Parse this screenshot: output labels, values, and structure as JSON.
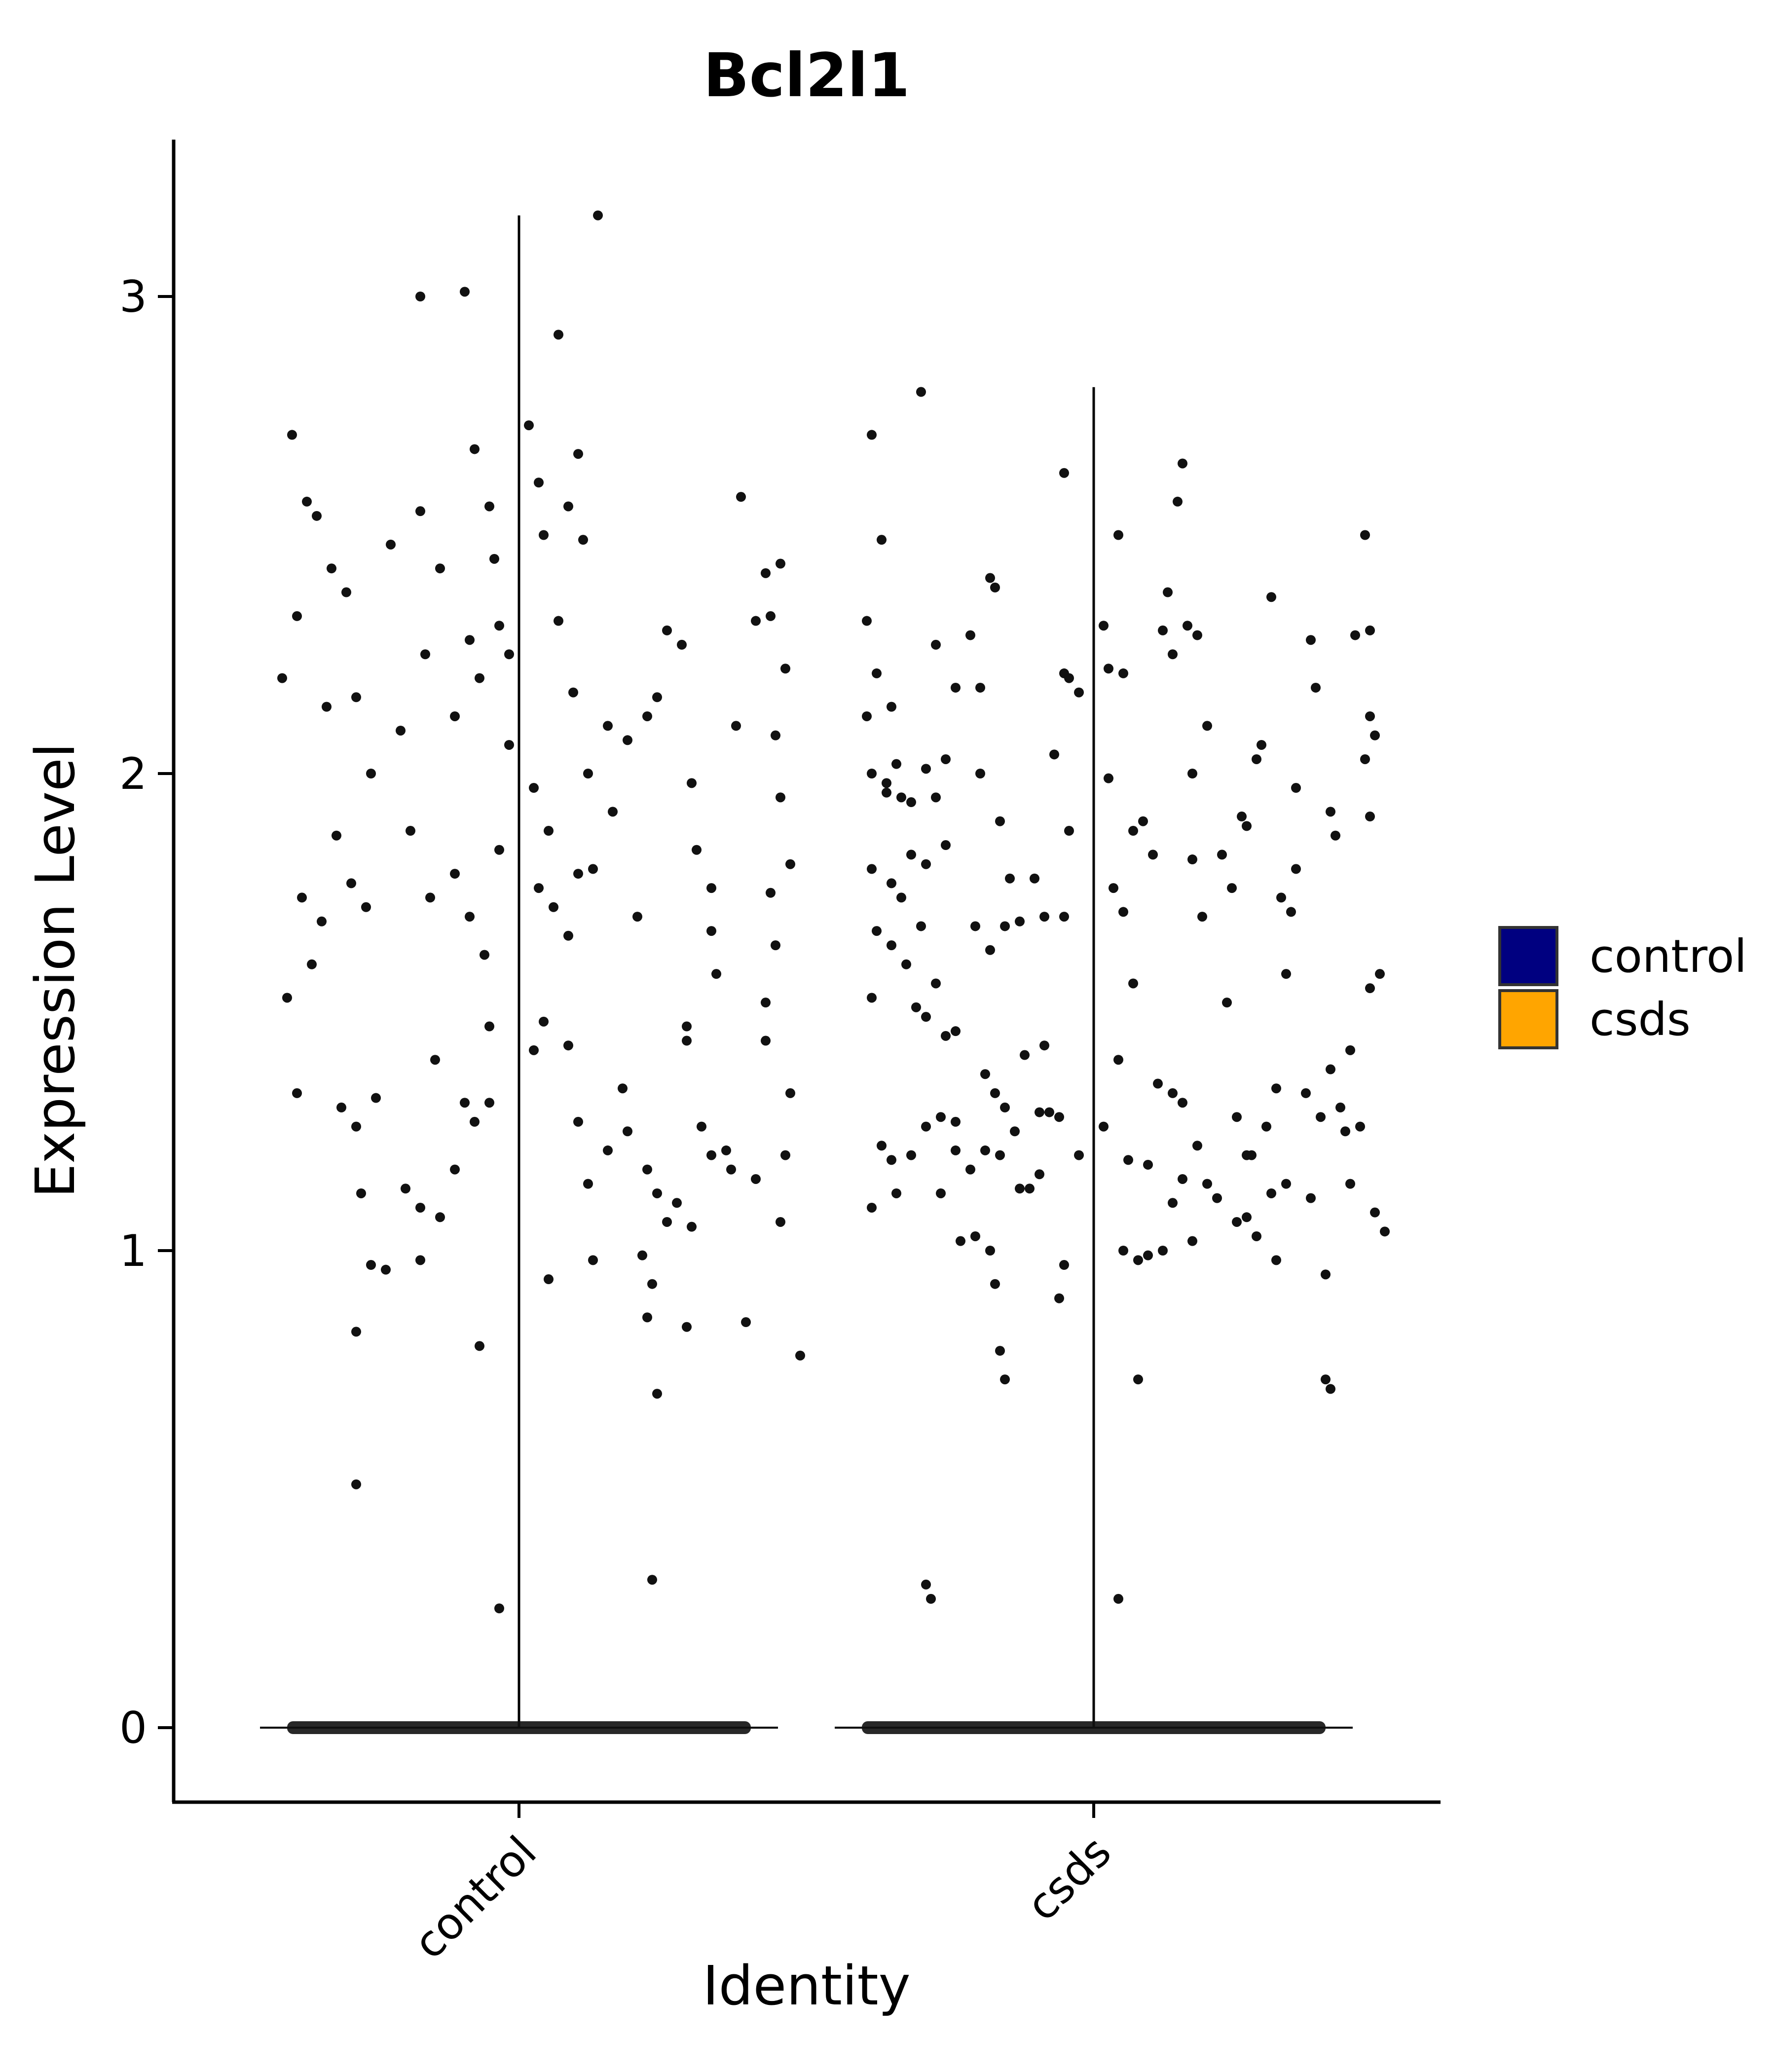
{
  "chart_data": {
    "type": "violin",
    "title": "Bcl2l1",
    "xlabel": "Identity",
    "ylabel": "Expression Level",
    "categories": [
      "control",
      "csds"
    ],
    "yticks": [
      0,
      1,
      2,
      3
    ],
    "ylim": [
      -0.16,
      3.3
    ],
    "grid": false,
    "legend": {
      "position": "right",
      "entries": [
        {
          "label": "control",
          "color": "#000080"
        },
        {
          "label": "csds",
          "color": "#FFA500"
        }
      ]
    },
    "violins": [
      {
        "category": "control",
        "max": 3.17,
        "min": 0
      },
      {
        "category": "csds",
        "max": 2.81,
        "min": 0
      }
    ],
    "points": {
      "control": [
        [
          -0.46,
          2.71
        ],
        [
          -0.43,
          2.57
        ],
        [
          -0.41,
          2.54
        ],
        [
          -0.45,
          2.33
        ],
        [
          -0.48,
          2.2
        ],
        [
          -0.38,
          2.43
        ],
        [
          -0.35,
          2.38
        ],
        [
          -0.33,
          2.16
        ],
        [
          -0.3,
          2.0
        ],
        [
          -0.39,
          2.14
        ],
        [
          -0.44,
          1.74
        ],
        [
          -0.4,
          1.69
        ],
        [
          -0.37,
          1.87
        ],
        [
          -0.34,
          1.77
        ],
        [
          -0.31,
          1.72
        ],
        [
          -0.42,
          1.6
        ],
        [
          -0.47,
          1.53
        ],
        [
          -0.36,
          1.3
        ],
        [
          -0.45,
          1.33
        ],
        [
          -0.33,
          1.26
        ],
        [
          -0.29,
          1.32
        ],
        [
          -0.32,
          1.12
        ],
        [
          -0.3,
          0.97
        ],
        [
          -0.33,
          0.83
        ],
        [
          -0.33,
          0.51
        ],
        [
          -0.2,
          3.0
        ],
        [
          -0.11,
          3.01
        ],
        [
          -0.09,
          2.68
        ],
        [
          -0.06,
          2.56
        ],
        [
          -0.2,
          2.55
        ],
        [
          -0.16,
          2.43
        ],
        [
          -0.26,
          2.48
        ],
        [
          -0.24,
          2.09
        ],
        [
          -0.19,
          2.25
        ],
        [
          -0.13,
          2.12
        ],
        [
          -0.1,
          2.28
        ],
        [
          -0.08,
          2.2
        ],
        [
          -0.04,
          2.31
        ],
        [
          -0.02,
          2.25
        ],
        [
          -0.05,
          2.45
        ],
        [
          -0.22,
          1.88
        ],
        [
          -0.18,
          1.74
        ],
        [
          -0.13,
          1.79
        ],
        [
          -0.1,
          1.7
        ],
        [
          -0.07,
          1.62
        ],
        [
          -0.04,
          1.84
        ],
        [
          -0.02,
          2.06
        ],
        [
          -0.17,
          1.4
        ],
        [
          -0.11,
          1.31
        ],
        [
          -0.06,
          1.31
        ],
        [
          -0.09,
          1.27
        ],
        [
          -0.13,
          1.17
        ],
        [
          -0.16,
          1.07
        ],
        [
          -0.2,
          1.09
        ],
        [
          -0.23,
          1.13
        ],
        [
          -0.27,
          0.96
        ],
        [
          -0.2,
          0.98
        ],
        [
          -0.08,
          0.8
        ],
        [
          -0.06,
          1.47
        ],
        [
          -0.04,
          0.25
        ],
        [
          0.02,
          2.73
        ],
        [
          0.04,
          2.61
        ],
        [
          0.05,
          2.5
        ],
        [
          0.08,
          2.92
        ],
        [
          0.12,
          2.67
        ],
        [
          0.1,
          2.56
        ],
        [
          0.13,
          2.49
        ],
        [
          0.08,
          2.32
        ],
        [
          0.11,
          2.17
        ],
        [
          0.14,
          2.0
        ],
        [
          0.18,
          2.1
        ],
        [
          0.22,
          2.07
        ],
        [
          0.03,
          1.97
        ],
        [
          0.06,
          1.88
        ],
        [
          0.04,
          1.76
        ],
        [
          0.07,
          1.72
        ],
        [
          0.1,
          1.66
        ],
        [
          0.12,
          1.79
        ],
        [
          0.15,
          1.8
        ],
        [
          0.19,
          1.92
        ],
        [
          0.24,
          1.7
        ],
        [
          0.03,
          1.42
        ],
        [
          0.05,
          1.48
        ],
        [
          0.1,
          1.43
        ],
        [
          0.12,
          1.27
        ],
        [
          0.14,
          1.14
        ],
        [
          0.18,
          1.21
        ],
        [
          0.06,
          0.94
        ],
        [
          0.15,
          0.98
        ],
        [
          0.21,
          1.34
        ],
        [
          0.22,
          1.25
        ],
        [
          0.26,
          1.17
        ],
        [
          0.28,
          1.12
        ],
        [
          0.3,
          1.06
        ],
        [
          0.25,
          0.99
        ],
        [
          0.27,
          0.93
        ],
        [
          0.32,
          1.1
        ],
        [
          0.35,
          1.05
        ],
        [
          0.34,
          1.44
        ],
        [
          0.37,
          1.26
        ],
        [
          0.39,
          1.2
        ],
        [
          0.28,
          0.7
        ],
        [
          0.26,
          0.86
        ],
        [
          0.34,
          0.84
        ],
        [
          0.27,
          0.31
        ],
        [
          0.3,
          2.3
        ],
        [
          0.28,
          2.16
        ],
        [
          0.26,
          2.12
        ],
        [
          0.33,
          2.27
        ],
        [
          0.35,
          1.98
        ],
        [
          0.39,
          1.76
        ],
        [
          0.36,
          1.84
        ],
        [
          0.39,
          1.67
        ],
        [
          0.34,
          1.47
        ],
        [
          0.45,
          2.58
        ],
        [
          0.44,
          2.1
        ],
        [
          0.4,
          1.58
        ],
        [
          0.42,
          1.21
        ],
        [
          0.43,
          1.17
        ],
        [
          0.46,
          0.85
        ],
        [
          0.5,
          2.42
        ],
        [
          0.51,
          2.33
        ],
        [
          0.53,
          2.44
        ],
        [
          0.54,
          2.22
        ],
        [
          0.52,
          2.08
        ],
        [
          0.53,
          1.95
        ],
        [
          0.55,
          1.81
        ],
        [
          0.51,
          1.75
        ],
        [
          0.52,
          1.64
        ],
        [
          0.5,
          1.52
        ],
        [
          0.55,
          1.33
        ],
        [
          0.54,
          1.2
        ],
        [
          0.53,
          1.06
        ],
        [
          0.57,
          0.78
        ],
        [
          0.5,
          1.44
        ],
        [
          0.48,
          1.15
        ],
        [
          0.48,
          2.32
        ],
        [
          0.16,
          3.17
        ]
      ],
      "csds": [
        [
          -0.45,
          2.71
        ],
        [
          -0.43,
          2.49
        ],
        [
          -0.46,
          2.32
        ],
        [
          -0.44,
          2.21
        ],
        [
          -0.46,
          2.12
        ],
        [
          -0.41,
          2.14
        ],
        [
          -0.45,
          2.0
        ],
        [
          -0.42,
          1.98
        ],
        [
          -0.4,
          2.02
        ],
        [
          -0.39,
          1.95
        ],
        [
          -0.37,
          1.94
        ],
        [
          -0.34,
          2.01
        ],
        [
          -0.32,
          1.95
        ],
        [
          -0.3,
          2.03
        ],
        [
          -0.42,
          1.96
        ],
        [
          -0.45,
          1.8
        ],
        [
          -0.41,
          1.77
        ],
        [
          -0.39,
          1.74
        ],
        [
          -0.37,
          1.83
        ],
        [
          -0.34,
          1.81
        ],
        [
          -0.3,
          1.85
        ],
        [
          -0.44,
          1.67
        ],
        [
          -0.41,
          1.64
        ],
        [
          -0.38,
          1.6
        ],
        [
          -0.35,
          1.68
        ],
        [
          -0.45,
          1.53
        ],
        [
          -0.36,
          1.51
        ],
        [
          -0.34,
          1.49
        ],
        [
          -0.3,
          1.45
        ],
        [
          -0.28,
          1.46
        ],
        [
          -0.32,
          1.56
        ],
        [
          -0.43,
          1.22
        ],
        [
          -0.41,
          1.19
        ],
        [
          -0.37,
          1.2
        ],
        [
          -0.34,
          1.26
        ],
        [
          -0.31,
          1.28
        ],
        [
          -0.28,
          1.27
        ],
        [
          -0.45,
          1.09
        ],
        [
          -0.4,
          1.12
        ],
        [
          -0.31,
          1.12
        ],
        [
          -0.28,
          1.21
        ],
        [
          -0.25,
          1.17
        ],
        [
          -0.27,
          1.02
        ],
        [
          -0.24,
          1.03
        ],
        [
          -0.21,
          1.0
        ],
        [
          -0.2,
          0.93
        ],
        [
          -0.19,
          0.79
        ],
        [
          -0.18,
          0.73
        ],
        [
          -0.34,
          0.3
        ],
        [
          -0.33,
          0.27
        ],
        [
          -0.35,
          2.8
        ],
        [
          -0.32,
          2.27
        ],
        [
          -0.28,
          2.18
        ],
        [
          -0.25,
          2.29
        ],
        [
          -0.23,
          2.18
        ],
        [
          -0.21,
          2.41
        ],
        [
          -0.2,
          2.39
        ],
        [
          -0.23,
          2.0
        ],
        [
          -0.19,
          1.9
        ],
        [
          -0.17,
          1.78
        ],
        [
          -0.24,
          1.68
        ],
        [
          -0.21,
          1.63
        ],
        [
          -0.18,
          1.68
        ],
        [
          -0.22,
          1.37
        ],
        [
          -0.2,
          1.33
        ],
        [
          -0.18,
          1.3
        ],
        [
          -0.16,
          1.25
        ],
        [
          -0.22,
          1.21
        ],
        [
          -0.19,
          1.2
        ],
        [
          -0.15,
          1.13
        ],
        [
          -0.13,
          1.13
        ],
        [
          -0.11,
          1.16
        ],
        [
          -0.09,
          1.29
        ],
        [
          -0.07,
          1.28
        ],
        [
          -0.1,
          1.43
        ],
        [
          -0.14,
          1.41
        ],
        [
          -0.15,
          1.69
        ],
        [
          -0.12,
          1.78
        ],
        [
          -0.1,
          1.7
        ],
        [
          -0.08,
          2.04
        ],
        [
          -0.06,
          2.21
        ],
        [
          -0.05,
          2.2
        ],
        [
          -0.03,
          2.17
        ],
        [
          -0.06,
          2.63
        ],
        [
          -0.05,
          1.88
        ],
        [
          -0.06,
          1.7
        ],
        [
          -0.07,
          0.9
        ],
        [
          -0.03,
          1.2
        ],
        [
          -0.06,
          0.97
        ],
        [
          -0.11,
          1.29
        ],
        [
          0.02,
          2.31
        ],
        [
          0.03,
          2.22
        ],
        [
          0.05,
          2.5
        ],
        [
          0.06,
          2.21
        ],
        [
          0.03,
          1.99
        ],
        [
          0.04,
          1.76
        ],
        [
          0.06,
          1.71
        ],
        [
          0.08,
          1.88
        ],
        [
          0.1,
          1.9
        ],
        [
          0.12,
          1.83
        ],
        [
          0.08,
          1.56
        ],
        [
          0.05,
          1.4
        ],
        [
          0.02,
          1.26
        ],
        [
          0.07,
          1.19
        ],
        [
          0.06,
          1.0
        ],
        [
          0.09,
          0.98
        ],
        [
          0.11,
          0.99
        ],
        [
          0.14,
          1.0
        ],
        [
          0.11,
          1.18
        ],
        [
          0.13,
          1.35
        ],
        [
          0.16,
          1.33
        ],
        [
          0.18,
          1.31
        ],
        [
          0.16,
          1.1
        ],
        [
          0.18,
          1.15
        ],
        [
          0.21,
          1.22
        ],
        [
          0.23,
          1.14
        ],
        [
          0.25,
          1.11
        ],
        [
          0.2,
          1.02
        ],
        [
          0.2,
          2.0
        ],
        [
          0.19,
          2.31
        ],
        [
          0.21,
          2.29
        ],
        [
          0.17,
          2.57
        ],
        [
          0.18,
          2.65
        ],
        [
          0.15,
          2.38
        ],
        [
          0.14,
          2.3
        ],
        [
          0.16,
          2.25
        ],
        [
          0.2,
          1.82
        ],
        [
          0.22,
          1.7
        ],
        [
          0.23,
          2.1
        ],
        [
          0.26,
          1.83
        ],
        [
          0.28,
          1.76
        ],
        [
          0.3,
          1.91
        ],
        [
          0.31,
          1.89
        ],
        [
          0.33,
          2.03
        ],
        [
          0.34,
          2.06
        ],
        [
          0.36,
          2.37
        ],
        [
          0.27,
          1.52
        ],
        [
          0.29,
          1.28
        ],
        [
          0.32,
          1.2
        ],
        [
          0.31,
          1.07
        ],
        [
          0.33,
          1.03
        ],
        [
          0.35,
          1.26
        ],
        [
          0.37,
          1.34
        ],
        [
          0.39,
          1.14
        ],
        [
          0.37,
          0.98
        ],
        [
          0.29,
          1.06
        ],
        [
          0.38,
          1.74
        ],
        [
          0.41,
          1.8
        ],
        [
          0.39,
          1.58
        ],
        [
          0.44,
          2.28
        ],
        [
          0.45,
          2.18
        ],
        [
          0.41,
          1.97
        ],
        [
          0.4,
          1.71
        ],
        [
          0.43,
          1.33
        ],
        [
          0.46,
          1.28
        ],
        [
          0.44,
          1.11
        ],
        [
          0.48,
          1.92
        ],
        [
          0.49,
          1.87
        ],
        [
          0.5,
          1.3
        ],
        [
          0.51,
          1.25
        ],
        [
          0.48,
          1.38
        ],
        [
          0.47,
          0.95
        ],
        [
          0.47,
          0.73
        ],
        [
          0.48,
          0.71
        ],
        [
          0.53,
          2.29
        ],
        [
          0.55,
          2.5
        ],
        [
          0.56,
          2.3
        ],
        [
          0.56,
          2.12
        ],
        [
          0.57,
          2.08
        ],
        [
          0.55,
          2.03
        ],
        [
          0.56,
          1.91
        ],
        [
          0.52,
          1.42
        ],
        [
          0.54,
          1.26
        ],
        [
          0.56,
          1.55
        ],
        [
          0.58,
          1.58
        ],
        [
          0.57,
          1.08
        ],
        [
          0.59,
          1.04
        ],
        [
          0.52,
          1.14
        ],
        [
          0.09,
          0.73
        ],
        [
          0.05,
          0.27
        ],
        [
          0.31,
          1.2
        ],
        [
          0.36,
          1.12
        ]
      ]
    }
  }
}
